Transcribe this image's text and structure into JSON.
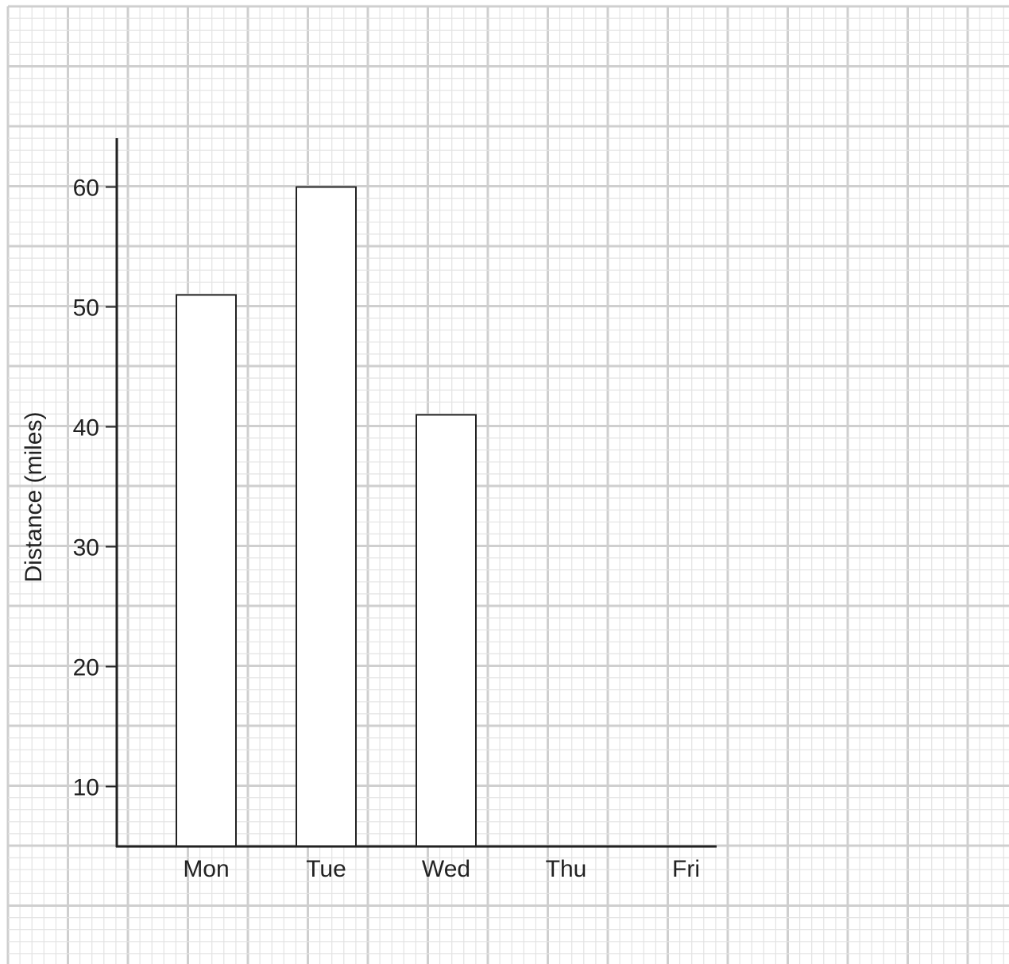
{
  "chart_data": {
    "type": "bar",
    "categories": [
      "Mon",
      "Tue",
      "Wed",
      "Thu",
      "Fri"
    ],
    "values": [
      51,
      60,
      41,
      null,
      null
    ],
    "title": "",
    "xlabel": "",
    "ylabel": "Distance (miles)",
    "ylim": [
      5,
      64
    ],
    "yticks": [
      10,
      20,
      30,
      40,
      50,
      60
    ],
    "grid": true,
    "bar_fill": "#ffffff",
    "bar_stroke": "#222222",
    "axis_color": "#222222",
    "grid_minor_color": "#e3e3e3",
    "grid_major_color": "#cfcfcf"
  }
}
